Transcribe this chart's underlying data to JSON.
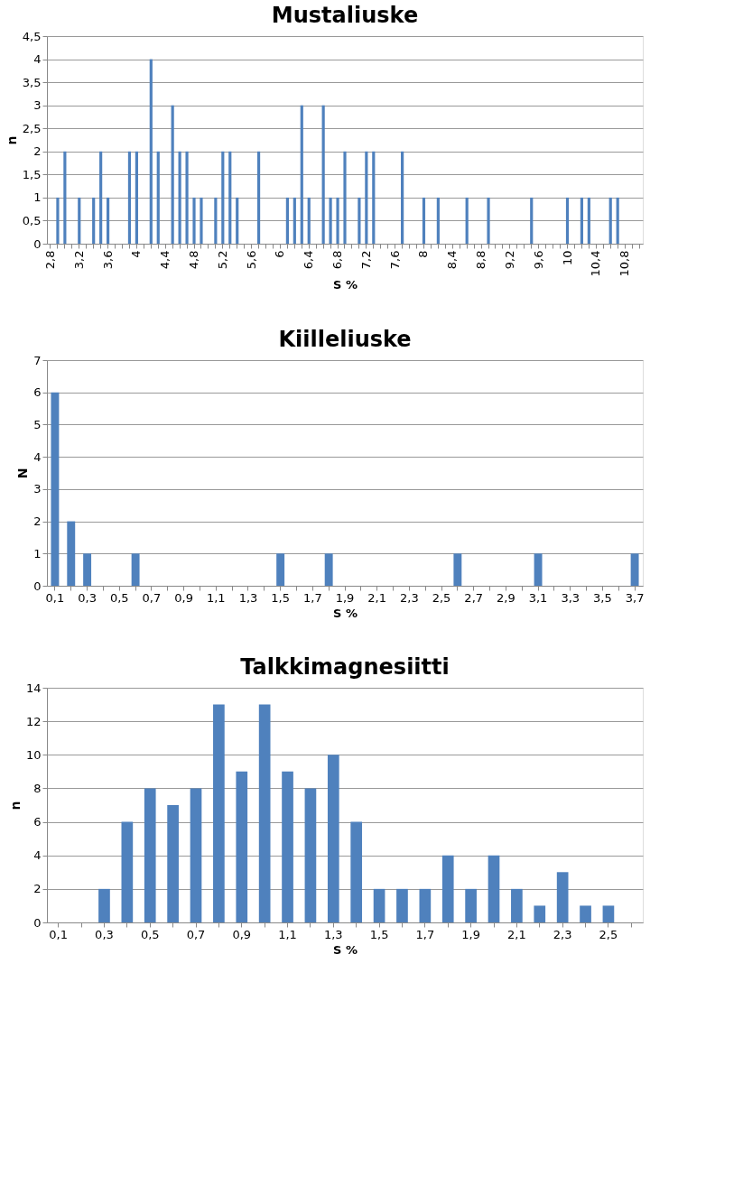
{
  "chart_data": [
    {
      "type": "bar",
      "title": "Mustaliuske",
      "xlabel": "S %",
      "ylabel": "n",
      "color": "#4f81bd",
      "grid": "y",
      "categories": [
        "2,8",
        null,
        null,
        null,
        "3,2",
        null,
        null,
        null,
        "3,6",
        null,
        null,
        null,
        "4",
        null,
        null,
        null,
        "4,4",
        null,
        null,
        null,
        "4,8",
        null,
        null,
        null,
        "5,2",
        null,
        null,
        null,
        "5,6",
        null,
        null,
        null,
        "6",
        null,
        null,
        null,
        "6,4",
        null,
        null,
        null,
        "6,8",
        null,
        null,
        null,
        "7,2",
        null,
        null,
        null,
        "7,6",
        null,
        null,
        null,
        "8",
        null,
        null,
        null,
        "8,4",
        null,
        null,
        null,
        "8,8",
        null,
        null,
        null,
        "9,2",
        null,
        null,
        null,
        "9,6",
        null,
        null,
        null,
        "10",
        null,
        null,
        null,
        "10,4",
        null,
        null,
        null,
        "10,8",
        null,
        null
      ],
      "values": [
        0,
        1,
        2,
        0,
        1,
        0,
        1,
        2,
        1,
        0,
        0,
        2,
        2,
        0,
        4,
        2,
        0,
        3,
        2,
        2,
        1,
        1,
        0,
        1,
        2,
        2,
        1,
        0,
        0,
        2,
        0,
        0,
        0,
        1,
        1,
        3,
        1,
        0,
        3,
        1,
        1,
        2,
        0,
        1,
        2,
        2,
        0,
        0,
        0,
        2,
        0,
        0,
        1,
        0,
        1,
        0,
        0,
        0,
        1,
        0,
        0,
        1,
        0,
        0,
        0,
        0,
        0,
        1,
        0,
        0,
        0,
        0,
        1,
        0,
        1,
        1,
        0,
        0,
        1,
        1,
        0,
        0,
        0
      ],
      "ylim": [
        0,
        4.5
      ],
      "yticks": [
        0,
        {
          "value": 0.5,
          "label": "0,5"
        },
        1,
        {
          "value": 1.5,
          "label": "1,5"
        },
        2,
        {
          "value": 2.5,
          "label": "2,5"
        },
        3,
        {
          "value": 3.5,
          "label": "3,5"
        },
        4,
        {
          "value": 4.5,
          "label": "4,5"
        }
      ]
    },
    {
      "type": "bar",
      "title": "Kiilleliuske",
      "xlabel": "S %",
      "ylabel": "N",
      "color": "#4f81bd",
      "grid": "y",
      "categories": [
        "0,1",
        null,
        "0,3",
        null,
        "0,5",
        null,
        "0,7",
        null,
        "0,9",
        null,
        "1,1",
        null,
        "1,3",
        null,
        "1,5",
        null,
        "1,7",
        null,
        "1,9",
        null,
        "2,1",
        null,
        "2,3",
        null,
        "2,5",
        null,
        "2,7",
        null,
        "2,9",
        null,
        "3,1",
        null,
        "3,3",
        null,
        "3,5",
        null,
        "3,7"
      ],
      "values": [
        6,
        2,
        1,
        0,
        0,
        1,
        0,
        0,
        0,
        0,
        0,
        0,
        0,
        0,
        1,
        0,
        0,
        1,
        0,
        0,
        0,
        0,
        0,
        0,
        0,
        1,
        0,
        0,
        0,
        0,
        1,
        0,
        0,
        0,
        0,
        0,
        1
      ],
      "ylim": [
        0,
        7
      ],
      "yticks": [
        0,
        1,
        2,
        3,
        4,
        5,
        6,
        7
      ]
    },
    {
      "type": "bar",
      "title": "Talkkimagnesiitti",
      "xlabel": "S %",
      "ylabel": "n",
      "color": "#4f81bd",
      "grid": "y",
      "categories": [
        "0,1",
        null,
        "0,3",
        null,
        "0,5",
        null,
        "0,7",
        null,
        "0,9",
        null,
        "1,1",
        null,
        "1,3",
        null,
        "1,5",
        null,
        "1,7",
        null,
        "1,9",
        null,
        "2,1",
        null,
        "2,3",
        null,
        "2,5",
        null
      ],
      "values": [
        0,
        0,
        2,
        6,
        8,
        7,
        8,
        13,
        9,
        13,
        9,
        8,
        10,
        6,
        2,
        2,
        2,
        4,
        2,
        4,
        2,
        1,
        3,
        1,
        1,
        0
      ],
      "ylim": [
        0,
        14
      ],
      "yticks": [
        0,
        2,
        4,
        6,
        8,
        10,
        12,
        14
      ]
    }
  ]
}
